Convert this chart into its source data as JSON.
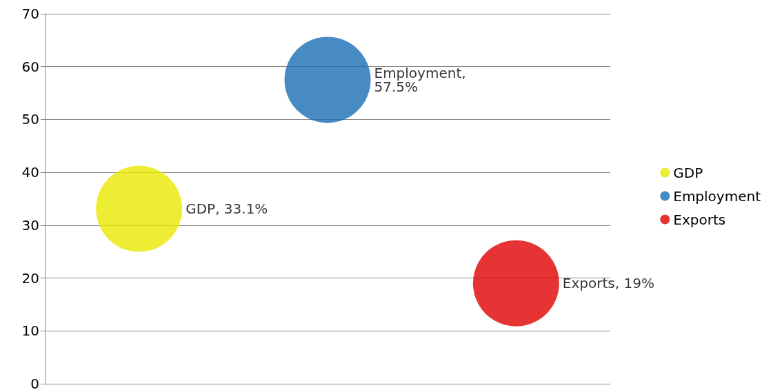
{
  "chart_data": {
    "type": "bubble",
    "categories": [
      null,
      null,
      null
    ],
    "series": [
      {
        "name": "GDP",
        "color": "#e8e800",
        "values": [
          33.1,
          null,
          null
        ],
        "sizes": [
          1,
          null,
          null
        ],
        "value_labels": [
          "GDP, 33.1%",
          null,
          null
        ]
      },
      {
        "name": "Employment",
        "color": "#1a6db5",
        "values": [
          null,
          57.5,
          null
        ],
        "sizes": [
          null,
          1,
          null
        ],
        "value_labels": [
          null,
          "Employment, 57.5%",
          null
        ]
      },
      {
        "name": "Exports",
        "color": "#e00000",
        "values": [
          null,
          null,
          19
        ],
        "sizes": [
          null,
          null,
          1
        ],
        "value_labels": [
          null,
          null,
          "Exports, 19%"
        ]
      }
    ],
    "ylim": [
      0,
      70
    ],
    "yticks": [
      0,
      10,
      20,
      30,
      40,
      50,
      60,
      70
    ],
    "grid": "y",
    "legend": "right",
    "marker": "circle"
  }
}
